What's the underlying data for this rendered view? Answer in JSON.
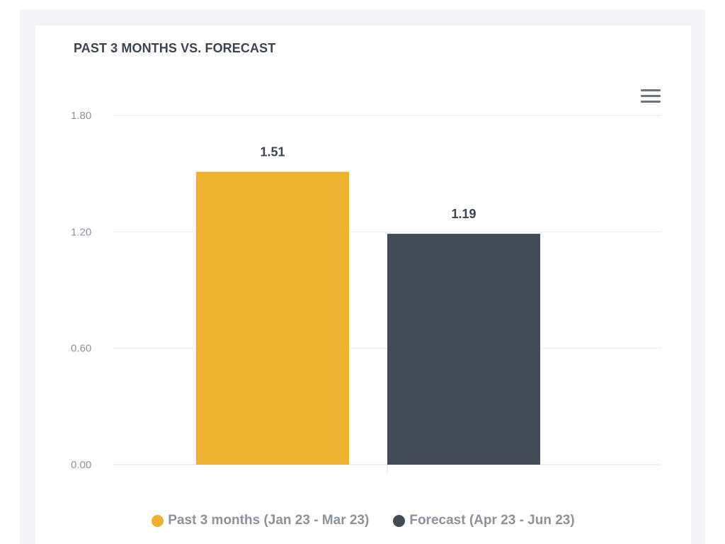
{
  "card": {
    "title": "PAST 3 MONTHS VS. FORECAST"
  },
  "menu": {
    "icon": "hamburger-menu-icon"
  },
  "chart_data": {
    "type": "bar",
    "title": "PAST 3 MONTHS VS. FORECAST",
    "xlabel": "",
    "ylabel": "",
    "ylim": [
      0,
      1.8
    ],
    "yticks": [
      "0.00",
      "0.60",
      "1.20",
      "1.80"
    ],
    "grid": true,
    "legend_position": "bottom-center",
    "categories": [
      "Past 3 months (Jan 23 - Mar 23)",
      "Forecast (Apr 23 - Jun 23)"
    ],
    "values": [
      1.51,
      1.19
    ],
    "data_labels": [
      "1.51",
      "1.19"
    ],
    "colors": [
      "#edb230",
      "#424c57"
    ]
  },
  "legend": {
    "items": [
      {
        "label": "Past 3 months (Jan 23 - Mar 23)",
        "color": "#edb230"
      },
      {
        "label": "Forecast (Apr 23 - Jun 23)",
        "color": "#424c57"
      }
    ]
  }
}
